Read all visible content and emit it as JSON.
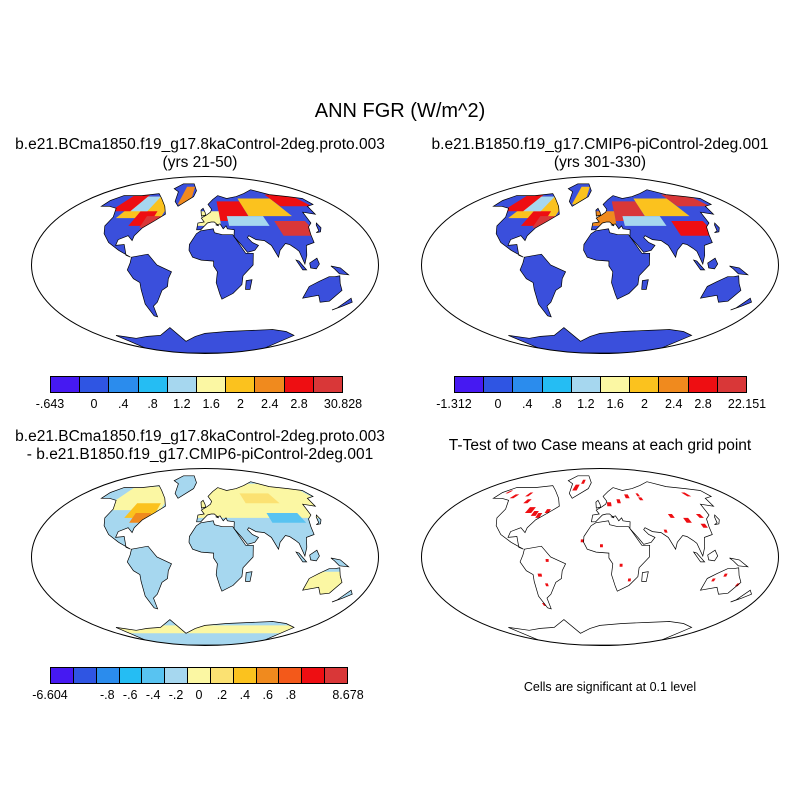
{
  "title": "ANN FGR (W/m^2)",
  "panels": [
    {
      "title_line1": "b.e21.BCma1850.f19_g17.8kaControl-2deg.proto.003",
      "title_line2": "(yrs 21-50)",
      "ocean_color": "#ffffff",
      "land_fill": "#3a4fdc",
      "colorbar": {
        "colors": [
          "#4619f2",
          "#2f55e3",
          "#2b8ced",
          "#25bdf3",
          "#a6d7ef",
          "#fbf7a3",
          "#fbc21e",
          "#f08a1e",
          "#ee0e12",
          "#d93738"
        ],
        "labels": [
          "-.643",
          "0",
          ".4",
          ".8",
          "1.2",
          "1.6",
          "2",
          "2.4",
          "2.8",
          "30.828"
        ]
      }
    },
    {
      "title_line1": "b.e21.B1850.f19_g17.CMIP6-piControl-2deg.001",
      "title_line2": "(yrs 301-330)",
      "ocean_color": "#ffffff",
      "land_fill": "#3a4fdc",
      "colorbar": {
        "colors": [
          "#4619f2",
          "#2f55e3",
          "#2b8ced",
          "#25bdf3",
          "#a6d7ef",
          "#fbf7a3",
          "#fbc21e",
          "#f08a1e",
          "#ee0e12",
          "#d93738"
        ],
        "labels": [
          "-1.312",
          "0",
          ".4",
          ".8",
          "1.2",
          "1.6",
          "2",
          "2.4",
          "2.8",
          "22.151"
        ]
      }
    },
    {
      "title_line1": "b.e21.BCma1850.f19_g17.8kaControl-2deg.proto.003",
      "title_line2": "- b.e21.B1850.f19_g17.CMIP6-piControl-2deg.001",
      "ocean_color": "#ffffff",
      "land_fill": "#a6d7ef",
      "colorbar": {
        "colors": [
          "#4619f2",
          "#2f55e3",
          "#2b8ced",
          "#25bdf3",
          "#58c3f1",
          "#a6d7ef",
          "#fbf7a3",
          "#fbe172",
          "#fbc21e",
          "#f08a1e",
          "#f3591a",
          "#ee0e12",
          "#d93738"
        ],
        "labels": [
          "-6.604",
          "-.8",
          "-.6",
          "-.4",
          "-.2",
          "0",
          ".2",
          ".4",
          ".6",
          ".8",
          "8.678"
        ]
      }
    },
    {
      "title_line1": "T-Test of two Case means at each grid point",
      "ocean_color": "#ffffff",
      "land_fill": "#ffffff",
      "note": "Cells are significant at 0.1 level"
    }
  ]
}
